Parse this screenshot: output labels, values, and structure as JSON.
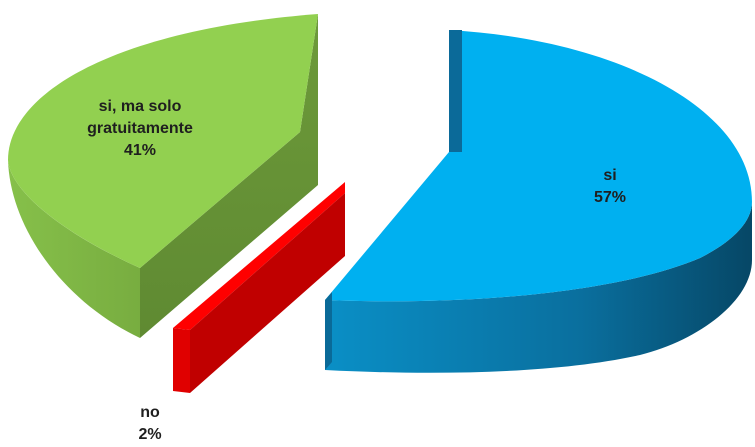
{
  "chart_data": {
    "type": "pie",
    "title": "",
    "categories": [
      "si",
      "si, ma solo gratuitamente",
      "no"
    ],
    "values": [
      57,
      41,
      2
    ],
    "value_labels": [
      "57%",
      "41%",
      "2%"
    ],
    "colors": [
      "#00b0f0",
      "#92d050",
      "#ff0000"
    ],
    "exploded": true,
    "three_d": true,
    "legend": "none",
    "labels": {
      "si": {
        "name": "si",
        "pct": "57%"
      },
      "green": {
        "name_line1": "si, ma solo",
        "name_line2": "gratuitamente",
        "pct": "41%"
      },
      "no": {
        "name": "no",
        "pct": "2%"
      }
    }
  }
}
